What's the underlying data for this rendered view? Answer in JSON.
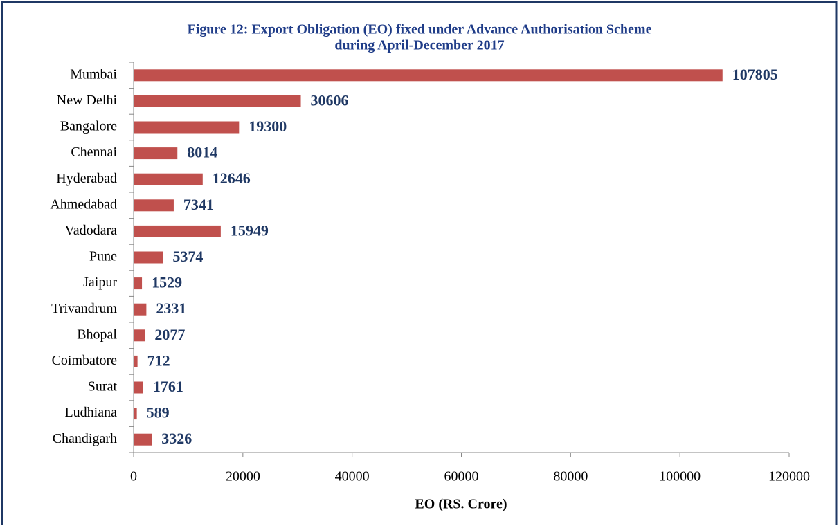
{
  "chart_data": {
    "type": "bar",
    "orientation": "horizontal",
    "title": [
      "Figure 12: Export Obligation (EO) fixed under Advance Authorisation Scheme",
      "during April-December 2017"
    ],
    "xlabel": "EO (RS. Crore)",
    "categories": [
      "Mumbai",
      "New Delhi",
      "Bangalore",
      "Chennai",
      "Hyderabad",
      "Ahmedabad",
      "Vadodara",
      "Pune",
      "Jaipur",
      "Trivandrum",
      "Bhopal",
      "Coimbatore",
      "Surat",
      "Ludhiana",
      "Chandigarh"
    ],
    "values": [
      107805,
      30606,
      19300,
      8014,
      12646,
      7341,
      15949,
      5374,
      1529,
      2331,
      2077,
      712,
      1761,
      589,
      3326
    ],
    "color": "#c0504d",
    "xlim": [
      0,
      120000
    ],
    "xticks": [
      0,
      20000,
      40000,
      60000,
      80000,
      100000,
      120000
    ],
    "grid": false
  }
}
